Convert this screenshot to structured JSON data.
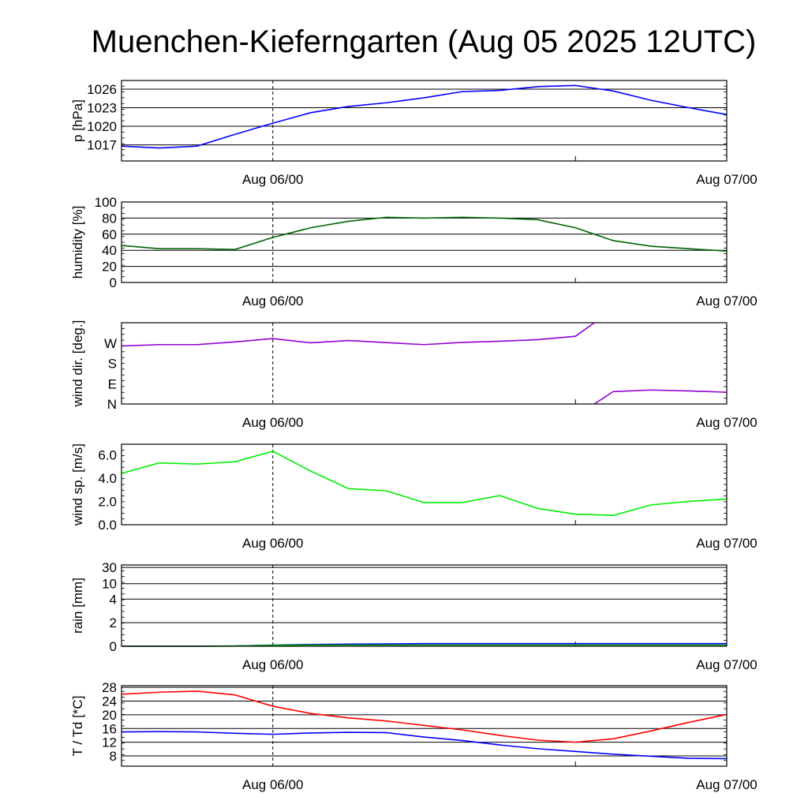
{
  "title": "Muenchen-Kieferngarten (Aug 05 2025 12UTC)",
  "x_tick_labels": [
    "Aug 06/00",
    "Aug 07/00"
  ],
  "chart_data": [
    {
      "type": "line",
      "ylabel": "p [hPa]",
      "ylim": [
        1014.4,
        1027.4
      ],
      "ytick_labels": [
        "1017",
        "1020",
        "1023",
        "1026"
      ],
      "ytick_values": [
        1017,
        1020,
        1023,
        1026
      ],
      "grid": true,
      "x_hours": [
        0,
        3,
        6,
        9,
        12,
        15,
        18,
        21,
        24,
        27,
        30,
        33,
        36,
        39,
        42,
        45,
        48
      ],
      "series": [
        {
          "color": "#0000ff",
          "values": [
            1016.8,
            1016.5,
            1016.8,
            1018.7,
            1020.5,
            1022.2,
            1023.2,
            1023.8,
            1024.6,
            1025.6,
            1025.8,
            1026.4,
            1026.6,
            1025.7,
            1024.2,
            1023.0,
            1021.9
          ]
        }
      ]
    },
    {
      "type": "line",
      "ylabel": "humidity [%]",
      "ylim": [
        0,
        100
      ],
      "ytick_labels": [
        "0",
        "20",
        "40",
        "60",
        "80",
        "100"
      ],
      "ytick_values": [
        0,
        20,
        40,
        60,
        80,
        100
      ],
      "grid": true,
      "x_hours": [
        0,
        3,
        6,
        9,
        12,
        15,
        18,
        21,
        24,
        27,
        30,
        33,
        36,
        39,
        42,
        45,
        48
      ],
      "series": [
        {
          "color": "#006400",
          "values": [
            46,
            42,
            42,
            41,
            56,
            68,
            76,
            81,
            80,
            81,
            80,
            78,
            68,
            52,
            45,
            42,
            39
          ]
        }
      ]
    },
    {
      "type": "line",
      "ylabel": "wind dir. [deg.]",
      "ytick_labels": [
        "N",
        "E",
        "S",
        "W"
      ],
      "grid": false,
      "x_hours": [
        0,
        3,
        6,
        9,
        12,
        15,
        18,
        21,
        24,
        27,
        30,
        33,
        36,
        39,
        42,
        45,
        48
      ],
      "series": [
        {
          "color": "#9400d3",
          "values": [
            257,
            263,
            263,
            275,
            290,
            271,
            281,
            272,
            263,
            273,
            278,
            285,
            300,
            55,
            62,
            58,
            52
          ]
        }
      ]
    },
    {
      "type": "line",
      "ylabel": "wind sp. [m/s]",
      "ylim": [
        0,
        6.9
      ],
      "ytick_labels": [
        "0.0",
        "2.0",
        "4.0",
        "6.0"
      ],
      "ytick_values": [
        0,
        2,
        4,
        6
      ],
      "grid": false,
      "x_hours": [
        0,
        3,
        6,
        9,
        12,
        15,
        18,
        21,
        24,
        27,
        30,
        33,
        36,
        39,
        42,
        45,
        48
      ],
      "series": [
        {
          "color": "#00ee00",
          "values": [
            4.4,
            5.3,
            5.2,
            5.4,
            6.3,
            4.6,
            3.1,
            2.9,
            1.9,
            1.9,
            2.5,
            1.4,
            0.9,
            0.8,
            1.7,
            2.0,
            2.2
          ]
        }
      ]
    },
    {
      "type": "line",
      "ylabel": "rain [mm]",
      "ytick_labels": [
        "0",
        "2",
        "4",
        "10",
        "30"
      ],
      "ytick_values": [
        0,
        2,
        4,
        10,
        30
      ],
      "grid": true,
      "x_hours": [
        0,
        3,
        6,
        9,
        12,
        15,
        18,
        21,
        24,
        48
      ],
      "series": [
        {
          "color": "#0000ff",
          "values": [
            0,
            0,
            0,
            0.02,
            0.1,
            0.15,
            0.18,
            0.2,
            0.22,
            0.22
          ]
        },
        {
          "color": "#00aa00",
          "values": [
            0,
            0,
            0,
            0.02,
            0.08,
            0.1,
            0.1,
            0.1,
            0.1,
            0.1
          ]
        }
      ]
    },
    {
      "type": "line",
      "ylabel": "T / Td [*C]",
      "ylim": [
        5,
        28.5
      ],
      "ytick_labels": [
        "8",
        "12",
        "16",
        "20",
        "24",
        "28"
      ],
      "ytick_values": [
        8,
        12,
        16,
        20,
        24,
        28
      ],
      "grid": true,
      "x_hours": [
        0,
        3,
        6,
        9,
        12,
        15,
        18,
        21,
        24,
        27,
        30,
        33,
        36,
        39,
        42,
        45,
        48
      ],
      "series": [
        {
          "color": "#ff0000",
          "values": [
            26.0,
            26.6,
            26.9,
            25.8,
            22.5,
            20.4,
            19.1,
            18.2,
            16.9,
            15.6,
            14.0,
            12.6,
            12.0,
            13.0,
            15.3,
            17.8,
            20.1
          ]
        },
        {
          "color": "#0000ff",
          "values": [
            15.0,
            15.1,
            15.0,
            14.6,
            14.3,
            14.7,
            14.9,
            14.8,
            13.5,
            12.5,
            11.2,
            10.1,
            9.3,
            8.5,
            7.9,
            7.3,
            7.2
          ]
        }
      ]
    }
  ]
}
